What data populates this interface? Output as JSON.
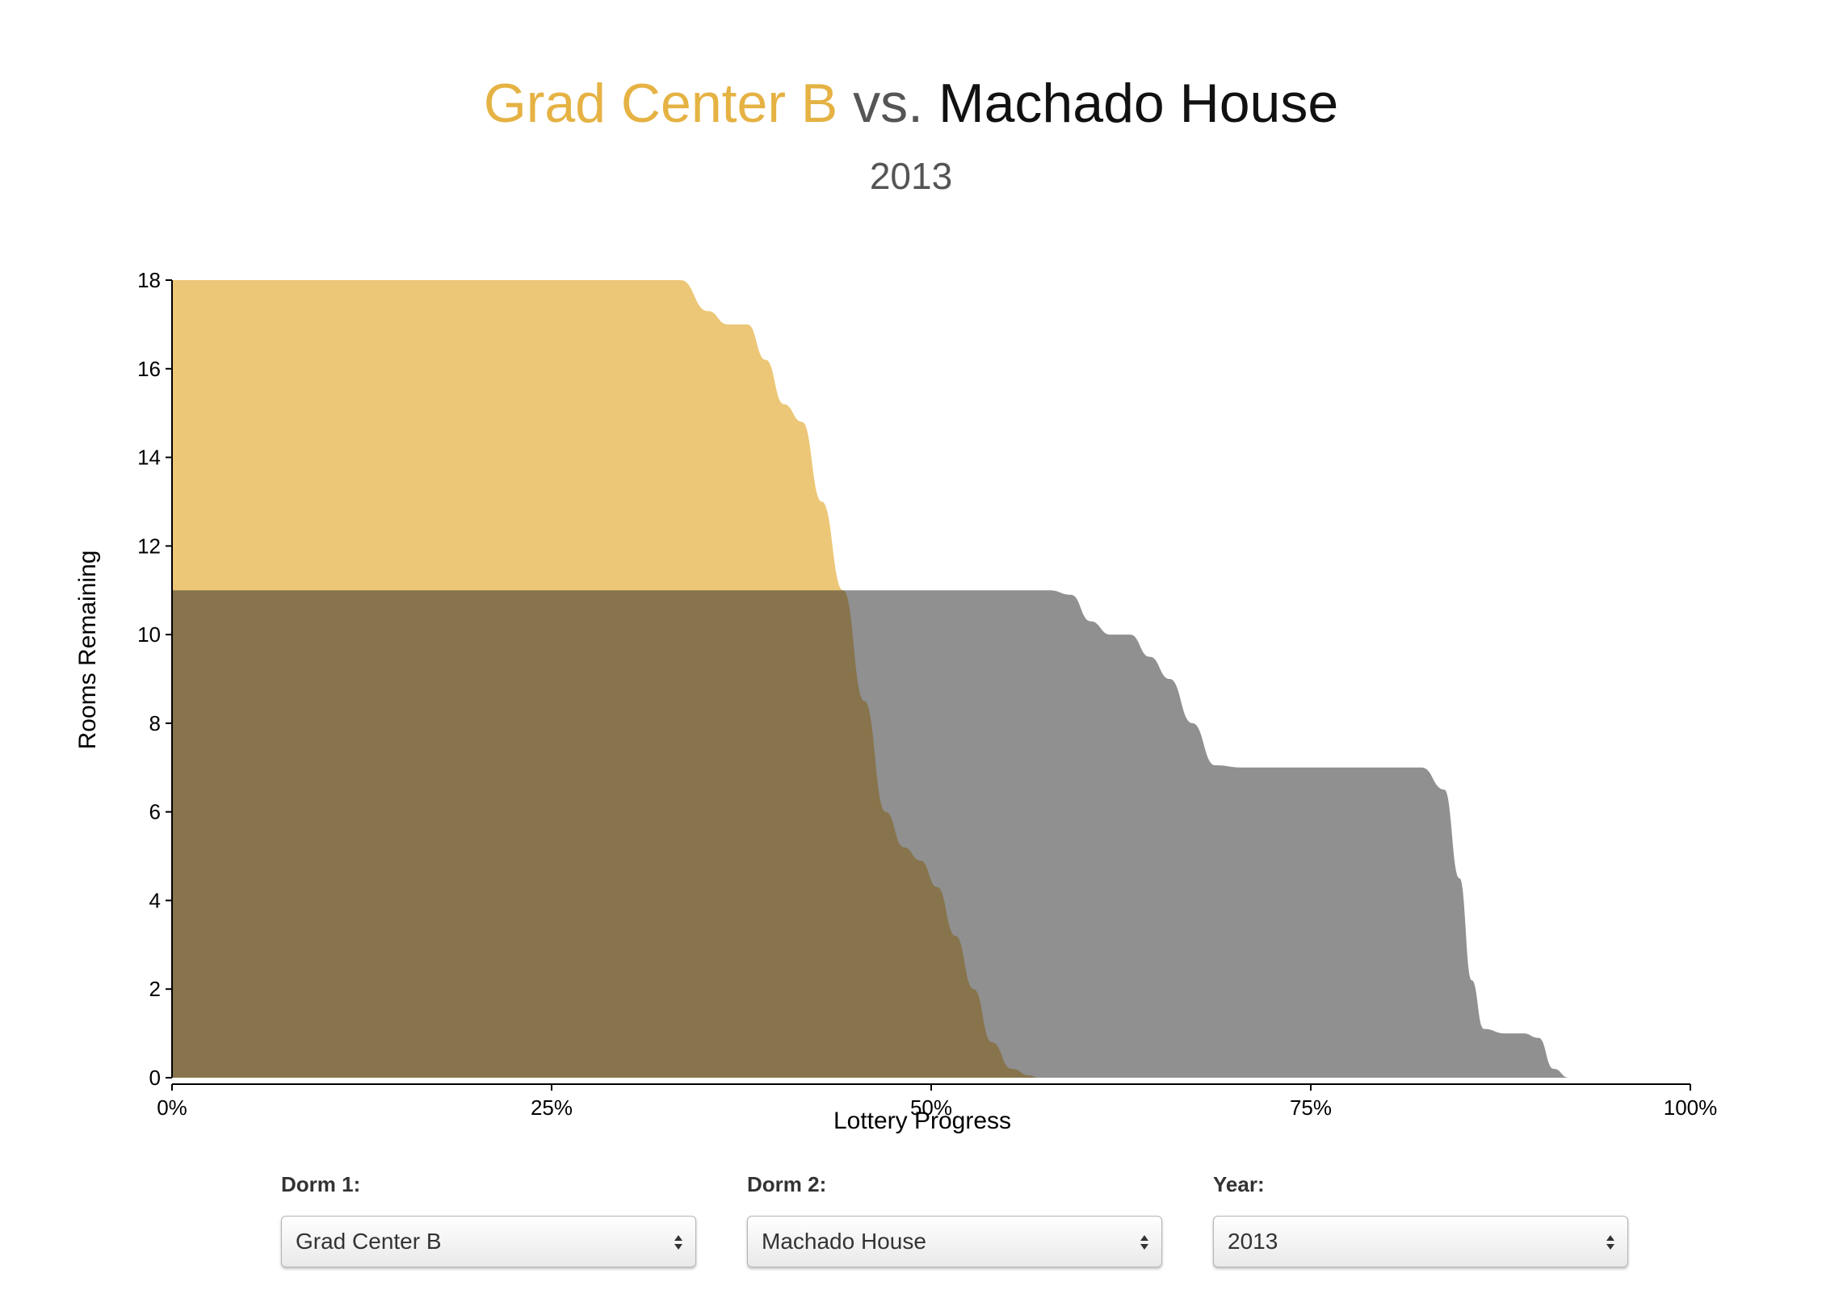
{
  "title": {
    "dorm1": "Grad Center B",
    "vs": "vs.",
    "dorm2": "Machado House"
  },
  "subtitle": "2013",
  "colors": {
    "dorm1": "#e5b243",
    "dorm2": "#000000",
    "overlap": "#89754f"
  },
  "chart_data": {
    "type": "area",
    "xlabel": "Lottery Progress",
    "ylabel": "Rooms Remaining",
    "xlim": [
      0,
      100
    ],
    "ylim": [
      0,
      18
    ],
    "xticks": [
      "0%",
      "25%",
      "50%",
      "75%",
      "100%"
    ],
    "yticks": [
      "0",
      "2",
      "4",
      "6",
      "8",
      "10",
      "12",
      "14",
      "16",
      "18"
    ],
    "grid": false,
    "series": [
      {
        "name": "Grad Center B",
        "color": "#e5b243",
        "x": [
          0,
          33.5,
          35.3,
          36.6,
          37.9,
          39.1,
          40.3,
          41.5,
          42.8,
          44.2,
          45.6,
          47.0,
          48.2,
          49.3,
          50.4,
          51.6,
          52.8,
          54.0,
          55.3,
          56.5,
          57.0
        ],
        "y": [
          18,
          18,
          17.3,
          17,
          17,
          16.2,
          15.2,
          14.8,
          13,
          11,
          8.5,
          6,
          5.2,
          4.9,
          4.3,
          3.2,
          2,
          0.8,
          0.2,
          0.05,
          0
        ]
      },
      {
        "name": "Machado House",
        "color": "#222222",
        "x": [
          0,
          56.0,
          57.8,
          59.2,
          60.5,
          61.8,
          63.1,
          64.4,
          65.7,
          67.2,
          68.7,
          70.5,
          80.0,
          82.3,
          83.8,
          84.8,
          85.6,
          86.4,
          87.8,
          89.0,
          90.0,
          91.0,
          92.0
        ],
        "y": [
          11,
          11,
          11,
          10.9,
          10.3,
          10,
          10,
          9.5,
          9.0,
          8.0,
          7.05,
          7,
          7,
          7,
          6.5,
          4.5,
          2.2,
          1.1,
          1,
          1,
          0.9,
          0.2,
          0
        ]
      }
    ]
  },
  "controls": [
    {
      "label": "Dorm 1:",
      "value": "Grad Center B"
    },
    {
      "label": "Dorm 2:",
      "value": "Machado House"
    },
    {
      "label": "Year:",
      "value": "2013"
    }
  ]
}
